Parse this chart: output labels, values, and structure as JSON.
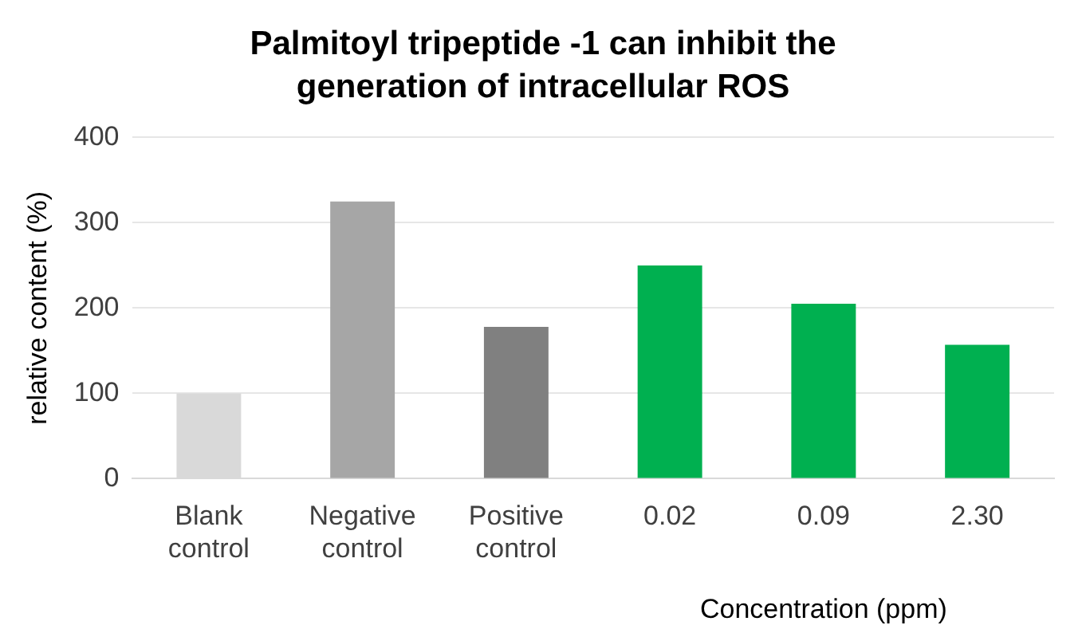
{
  "chart_data": {
    "type": "bar",
    "title": "Palmitoyl tripeptide -1 can inhibit the generation of intracellular ROS",
    "ylabel": "relative content (%)",
    "xlabel": "Concentration (ppm)",
    "categories": [
      "Blank control",
      "Negative control",
      "Positive control",
      "0.02",
      "0.09",
      "2.30"
    ],
    "values": [
      100,
      325,
      178,
      250,
      205,
      157
    ],
    "colors": [
      "#d9d9d9",
      "#a6a6a6",
      "#808080",
      "#00b050",
      "#00b050",
      "#00b050"
    ],
    "ylim": [
      0,
      400
    ],
    "yticks": [
      0,
      100,
      200,
      300,
      400
    ],
    "grid": "y",
    "legend": false
  }
}
